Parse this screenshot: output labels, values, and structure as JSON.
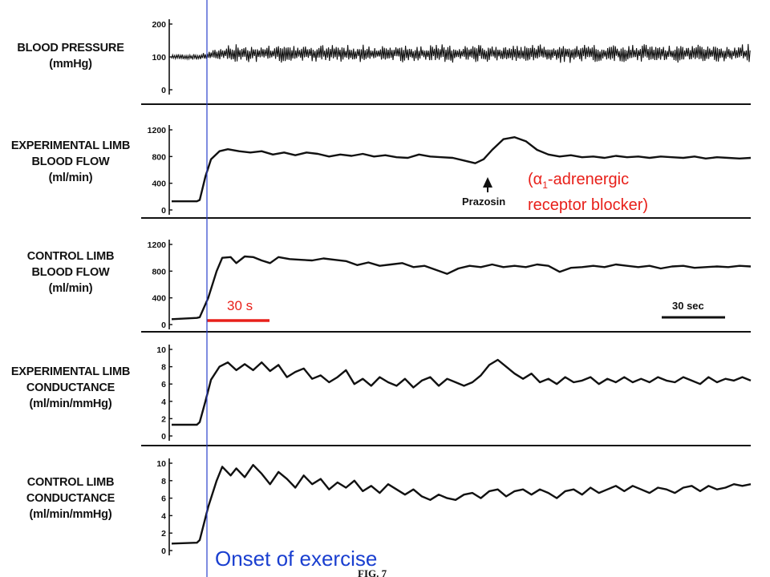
{
  "chart_data": [
    {
      "type": "line",
      "panel": "blood-pressure",
      "label_lines": [
        "BLOOD PRESSURE",
        "(mmHg)"
      ],
      "yticks": [
        0,
        100,
        200
      ],
      "ylim": [
        -20,
        230
      ],
      "series": [
        {
          "baseline": [
            {
              "t": 0,
              "v": 100
            },
            {
              "t": 10,
              "v": 100
            }
          ],
          "after_onset": {
            "mean": 110,
            "amplitude": 40
          }
        }
      ]
    },
    {
      "type": "line",
      "panel": "experimental-limb-blood-flow",
      "label_lines": [
        "EXPERIMENTAL LIMB",
        "BLOOD FLOW",
        "(ml/min)"
      ],
      "yticks": [
        0,
        400,
        800,
        1200
      ],
      "ylim": [
        0,
        1300
      ],
      "points": [
        [
          0,
          130
        ],
        [
          9,
          130
        ],
        [
          10,
          150
        ],
        [
          12,
          500
        ],
        [
          14,
          760
        ],
        [
          17,
          880
        ],
        [
          20,
          910
        ],
        [
          24,
          880
        ],
        [
          28,
          860
        ],
        [
          32,
          880
        ],
        [
          36,
          830
        ],
        [
          40,
          860
        ],
        [
          44,
          820
        ],
        [
          48,
          860
        ],
        [
          52,
          840
        ],
        [
          56,
          800
        ],
        [
          60,
          830
        ],
        [
          64,
          810
        ],
        [
          68,
          840
        ],
        [
          72,
          800
        ],
        [
          76,
          820
        ],
        [
          80,
          790
        ],
        [
          84,
          780
        ],
        [
          88,
          830
        ],
        [
          92,
          800
        ],
        [
          96,
          790
        ],
        [
          100,
          780
        ],
        [
          104,
          740
        ],
        [
          108,
          700
        ],
        [
          111,
          760
        ],
        [
          114,
          900
        ],
        [
          118,
          1060
        ],
        [
          122,
          1090
        ],
        [
          126,
          1030
        ],
        [
          130,
          900
        ],
        [
          134,
          830
        ],
        [
          138,
          800
        ],
        [
          142,
          820
        ],
        [
          146,
          790
        ],
        [
          150,
          800
        ],
        [
          154,
          780
        ],
        [
          158,
          810
        ],
        [
          162,
          790
        ],
        [
          166,
          800
        ],
        [
          170,
          780
        ],
        [
          174,
          800
        ],
        [
          178,
          790
        ],
        [
          182,
          780
        ],
        [
          186,
          800
        ],
        [
          190,
          770
        ],
        [
          194,
          790
        ],
        [
          198,
          780
        ],
        [
          202,
          770
        ],
        [
          206,
          780
        ]
      ]
    },
    {
      "type": "line",
      "panel": "control-limb-blood-flow",
      "label_lines": [
        "CONTROL LIMB",
        "BLOOD FLOW",
        "(ml/min)"
      ],
      "yticks": [
        0,
        400,
        800,
        1200
      ],
      "ylim": [
        0,
        1300
      ],
      "points": [
        [
          0,
          80
        ],
        [
          9,
          100
        ],
        [
          10,
          110
        ],
        [
          13,
          400
        ],
        [
          16,
          800
        ],
        [
          18,
          1000
        ],
        [
          21,
          1010
        ],
        [
          23,
          920
        ],
        [
          26,
          1020
        ],
        [
          29,
          1010
        ],
        [
          32,
          960
        ],
        [
          35,
          920
        ],
        [
          38,
          1010
        ],
        [
          42,
          980
        ],
        [
          46,
          970
        ],
        [
          50,
          960
        ],
        [
          54,
          990
        ],
        [
          58,
          970
        ],
        [
          62,
          950
        ],
        [
          66,
          890
        ],
        [
          70,
          930
        ],
        [
          74,
          880
        ],
        [
          78,
          900
        ],
        [
          82,
          920
        ],
        [
          86,
          860
        ],
        [
          90,
          880
        ],
        [
          94,
          820
        ],
        [
          98,
          760
        ],
        [
          102,
          840
        ],
        [
          106,
          880
        ],
        [
          110,
          860
        ],
        [
          114,
          900
        ],
        [
          118,
          860
        ],
        [
          122,
          880
        ],
        [
          126,
          860
        ],
        [
          130,
          900
        ],
        [
          134,
          880
        ],
        [
          138,
          790
        ],
        [
          142,
          850
        ],
        [
          146,
          860
        ],
        [
          150,
          880
        ],
        [
          154,
          860
        ],
        [
          158,
          900
        ],
        [
          162,
          880
        ],
        [
          166,
          860
        ],
        [
          170,
          880
        ],
        [
          174,
          840
        ],
        [
          178,
          870
        ],
        [
          182,
          880
        ],
        [
          186,
          850
        ],
        [
          190,
          860
        ],
        [
          194,
          870
        ],
        [
          198,
          860
        ],
        [
          202,
          880
        ],
        [
          206,
          870
        ]
      ]
    },
    {
      "type": "line",
      "panel": "experimental-limb-conductance",
      "label_lines": [
        "EXPERIMENTAL LIMB",
        "CONDUCTANCE",
        "(ml/min/mmHg)"
      ],
      "yticks": [
        0,
        2,
        4,
        6,
        8,
        10
      ],
      "ylim": [
        0,
        11
      ],
      "points": [
        [
          0,
          1.3
        ],
        [
          9,
          1.3
        ],
        [
          10,
          1.6
        ],
        [
          12,
          4
        ],
        [
          14,
          6.5
        ],
        [
          17,
          8
        ],
        [
          20,
          8.5
        ],
        [
          23,
          7.6
        ],
        [
          26,
          8.3
        ],
        [
          29,
          7.6
        ],
        [
          32,
          8.5
        ],
        [
          35,
          7.5
        ],
        [
          38,
          8.2
        ],
        [
          41,
          6.8
        ],
        [
          44,
          7.4
        ],
        [
          47,
          7.8
        ],
        [
          50,
          6.6
        ],
        [
          53,
          7
        ],
        [
          56,
          6.2
        ],
        [
          59,
          6.8
        ],
        [
          62,
          7.6
        ],
        [
          65,
          6
        ],
        [
          68,
          6.6
        ],
        [
          71,
          5.8
        ],
        [
          74,
          6.8
        ],
        [
          77,
          6.2
        ],
        [
          80,
          5.8
        ],
        [
          83,
          6.6
        ],
        [
          86,
          5.6
        ],
        [
          89,
          6.4
        ],
        [
          92,
          6.8
        ],
        [
          95,
          5.8
        ],
        [
          98,
          6.6
        ],
        [
          101,
          6.2
        ],
        [
          104,
          5.8
        ],
        [
          107,
          6.2
        ],
        [
          110,
          7
        ],
        [
          113,
          8.2
        ],
        [
          116,
          8.8
        ],
        [
          119,
          8
        ],
        [
          122,
          7.2
        ],
        [
          125,
          6.6
        ],
        [
          128,
          7.2
        ],
        [
          131,
          6.2
        ],
        [
          134,
          6.6
        ],
        [
          137,
          6
        ],
        [
          140,
          6.8
        ],
        [
          143,
          6.2
        ],
        [
          146,
          6.4
        ],
        [
          149,
          6.8
        ],
        [
          152,
          6
        ],
        [
          155,
          6.6
        ],
        [
          158,
          6.2
        ],
        [
          161,
          6.8
        ],
        [
          164,
          6.2
        ],
        [
          167,
          6.6
        ],
        [
          170,
          6.2
        ],
        [
          173,
          6.8
        ],
        [
          176,
          6.4
        ],
        [
          179,
          6.2
        ],
        [
          182,
          6.8
        ],
        [
          185,
          6.4
        ],
        [
          188,
          6
        ],
        [
          191,
          6.8
        ],
        [
          194,
          6.2
        ],
        [
          197,
          6.6
        ],
        [
          200,
          6.4
        ],
        [
          203,
          6.8
        ],
        [
          206,
          6.4
        ]
      ]
    },
    {
      "type": "line",
      "panel": "control-limb-conductance",
      "label_lines": [
        "CONTROL LIMB",
        "CONDUCTANCE",
        "(ml/min/mmHg)"
      ],
      "yticks": [
        0,
        2,
        4,
        6,
        8,
        10
      ],
      "ylim": [
        0,
        11
      ],
      "points": [
        [
          0,
          0.8
        ],
        [
          9,
          0.9
        ],
        [
          10,
          1.2
        ],
        [
          13,
          5
        ],
        [
          16,
          8
        ],
        [
          18,
          9.6
        ],
        [
          21,
          8.6
        ],
        [
          23,
          9.4
        ],
        [
          26,
          8.4
        ],
        [
          29,
          9.8
        ],
        [
          32,
          8.8
        ],
        [
          35,
          7.6
        ],
        [
          38,
          9
        ],
        [
          41,
          8.2
        ],
        [
          44,
          7.2
        ],
        [
          47,
          8.6
        ],
        [
          50,
          7.6
        ],
        [
          53,
          8.2
        ],
        [
          56,
          7
        ],
        [
          59,
          7.8
        ],
        [
          62,
          7.2
        ],
        [
          65,
          8
        ],
        [
          68,
          6.8
        ],
        [
          71,
          7.4
        ],
        [
          74,
          6.6
        ],
        [
          77,
          7.6
        ],
        [
          80,
          7
        ],
        [
          83,
          6.4
        ],
        [
          86,
          7
        ],
        [
          89,
          6.2
        ],
        [
          92,
          5.8
        ],
        [
          95,
          6.4
        ],
        [
          98,
          6
        ],
        [
          101,
          5.8
        ],
        [
          104,
          6.4
        ],
        [
          107,
          6.6
        ],
        [
          110,
          6
        ],
        [
          113,
          6.8
        ],
        [
          116,
          7
        ],
        [
          119,
          6.2
        ],
        [
          122,
          6.8
        ],
        [
          125,
          7
        ],
        [
          128,
          6.4
        ],
        [
          131,
          7
        ],
        [
          134,
          6.6
        ],
        [
          137,
          6
        ],
        [
          140,
          6.8
        ],
        [
          143,
          7
        ],
        [
          146,
          6.4
        ],
        [
          149,
          7.2
        ],
        [
          152,
          6.6
        ],
        [
          155,
          7
        ],
        [
          158,
          7.4
        ],
        [
          161,
          6.8
        ],
        [
          164,
          7.4
        ],
        [
          167,
          7
        ],
        [
          170,
          6.6
        ],
        [
          173,
          7.2
        ],
        [
          176,
          7
        ],
        [
          179,
          6.6
        ],
        [
          182,
          7.2
        ],
        [
          185,
          7.4
        ],
        [
          188,
          6.8
        ],
        [
          191,
          7.4
        ],
        [
          194,
          7
        ],
        [
          197,
          7.2
        ],
        [
          200,
          7.6
        ],
        [
          203,
          7.4
        ],
        [
          206,
          7.6
        ]
      ]
    }
  ],
  "annotations": {
    "onset_label": "Onset of exercise",
    "thirty_s_red": "30 s",
    "thirty_sec_bar": "30 sec",
    "prazosin": "Prazosin",
    "blocker_paren_open": "(",
    "blocker_alpha": "α",
    "blocker_sub": "1",
    "blocker_line1_rest": "-adrenergic",
    "blocker_line2": "receptor blocker)",
    "fig_label": "FIG. 7"
  },
  "colors": {
    "trace": "#111111",
    "onset_line": "#2a3fcc",
    "red_annotation": "#e8201a",
    "blue_annotation": "#1a3fd0"
  }
}
